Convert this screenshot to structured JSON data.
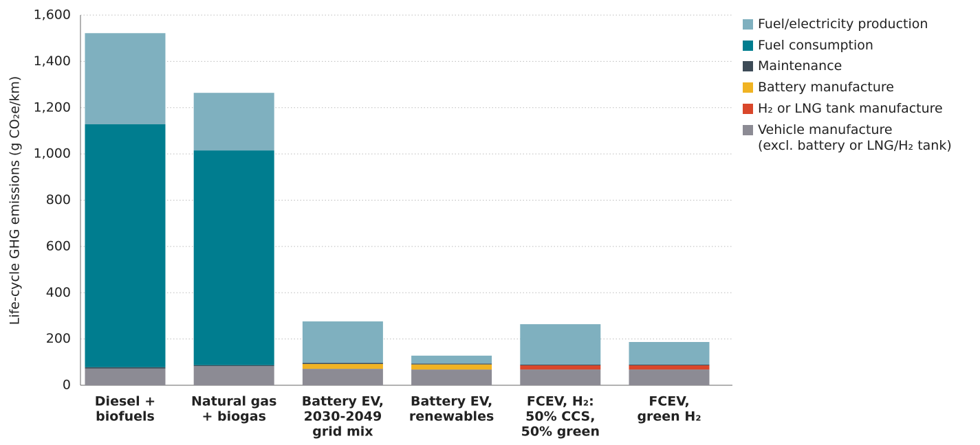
{
  "chart_data": {
    "type": "stacked_bar",
    "y_label": "Life-cycle GHG emissions (g CO₂e/km)",
    "categories": [
      [
        "Diesel +",
        "biofuels"
      ],
      [
        "Natural gas",
        "+ biogas"
      ],
      [
        "Battery EV,",
        "2030-2049",
        "grid mix"
      ],
      [
        "Battery EV,",
        "renewables"
      ],
      [
        "FCEV, H₂:",
        "50% CCS,",
        "50% green"
      ],
      [
        "FCEV,",
        "green H₂"
      ]
    ],
    "series": [
      {
        "name": "Fuel/electricity production",
        "color": "#7fb0bf",
        "values": [
          394,
          249,
          179,
          34,
          175,
          98
        ]
      },
      {
        "name": "Fuel consumption",
        "color": "#007d8f",
        "values": [
          1050,
          928,
          0,
          0,
          0,
          0
        ]
      },
      {
        "name": "Maintenance",
        "color": "#3d4b57",
        "values": [
          6,
          4,
          5,
          4,
          3,
          3
        ]
      },
      {
        "name": "Battery manufacture",
        "color": "#f0b323",
        "values": [
          0,
          0,
          21,
          22,
          0,
          0
        ]
      },
      {
        "name": "H₂ or LNG tank manufacture",
        "color": "#d9472b",
        "values": [
          0,
          0,
          0,
          0,
          18,
          18
        ]
      },
      {
        "name": "Vehicle manufacture\n(excl. battery or LNG/H₂ tank)",
        "color": "#8c8b94",
        "values": [
          72,
          83,
          71,
          68,
          68,
          68
        ]
      }
    ],
    "ylim": [
      0,
      1600
    ],
    "yticks": [
      0,
      200,
      400,
      600,
      800,
      {
        "value": 1000,
        "label": "1,000"
      },
      {
        "value": 1200,
        "label": "1,200"
      },
      {
        "value": 1400,
        "label": "1,400"
      },
      {
        "value": 1600,
        "label": "1,600"
      }
    ],
    "grid": true
  }
}
